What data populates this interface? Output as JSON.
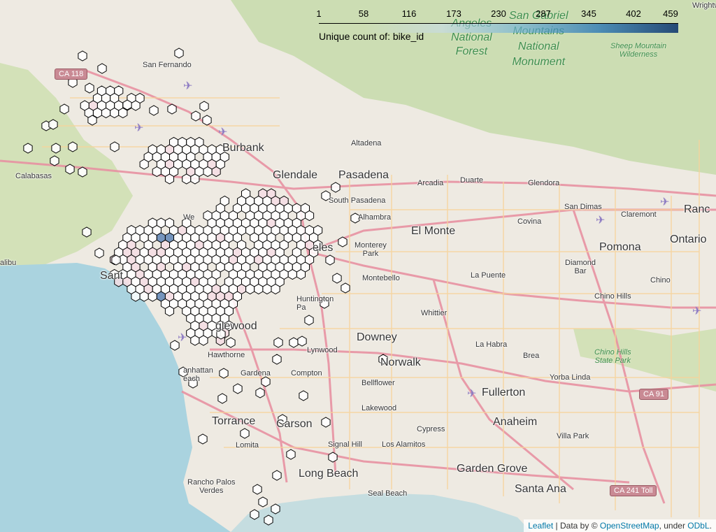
{
  "map": {
    "legend": {
      "ticks": [
        "1",
        "58",
        "116",
        "173",
        "230",
        "287",
        "345",
        "402",
        "459"
      ],
      "title": "Unique count of: bike_id"
    },
    "labels": {
      "san_fernando": "San Fernando",
      "burbank": "Burbank",
      "calabasas": "Calabasas",
      "glendale": "Glendale",
      "pasadena": "Pasadena",
      "altadena": "Altadena",
      "arcadia": "Arcadia",
      "duarte": "Duarte",
      "glendora": "Glendora",
      "san_dimas": "San Dimas",
      "claremont": "Claremont",
      "ranc": "Ranc",
      "south_pasadena": "South Pasadena",
      "alhambra": "Alhambra",
      "el_monte": "El Monte",
      "covina": "Covina",
      "pomona": "Pomona",
      "ontario": "Ontario",
      "monterey_park": "Monterey\nPark",
      "diamond_bar": "Diamond\nBar",
      "chino": "Chino",
      "montebello": "Montebello",
      "la_puente": "La Puente",
      "chino_hills": "Chino Hills",
      "malibu": "alibu",
      "santa_monica": "Sant",
      "huntington_park": "Huntington\nPa",
      "whittier": "Whittier",
      "inglewood": "glewood",
      "downey": "Downey",
      "la_habra": "La Habra",
      "brea": "Brea",
      "lynwood": "Lynwood",
      "hawthorne": "Hawthorne",
      "norwalk": "Norwalk",
      "gardena": "Gardena",
      "compton": "Compton",
      "bellflower": "Bellflower",
      "fullerton": "Fullerton",
      "yorba_linda": "Yorba Linda",
      "manhattan_beach": "anhattan\neach",
      "lakewood": "Lakewood",
      "torrance": "Torrance",
      "carson": "Carson",
      "anaheim": "Anaheim",
      "cypress": "Cypress",
      "lomita": "Lomita",
      "signal_hill": "Signal Hill",
      "los_alamitos": "Los Alamitos",
      "villa_park": "Villa Park",
      "long_beach": "Long Beach",
      "garden_grove": "Garden Grove",
      "rancho_palos_verdes": "Rancho Palos\nVerdes",
      "seal_beach": "Seal Beach",
      "santa_ana": "Santa Ana",
      "los_angeles_partial": "eles",
      "angeles_forest": "Angeles\nNational\nForest",
      "san_gabriel_monument": "San Gabriel\nMountains\nNational\nMonument",
      "sheep_mountain": "Sheep Mountain\nWilderness",
      "chino_hills_park": "Chino Hills\nState Park",
      "wrightwood": "Wrightwo",
      "we": "We"
    },
    "shields": {
      "ca118": "CA 118",
      "ca91": "CA 91",
      "ca241": "CA 241 Toll"
    },
    "attribution": {
      "leaflet": "Leaflet",
      "sep1": " | Data by © ",
      "osm": "OpenStreetMap",
      "sep2": ", under ",
      "odbl": "ODbL",
      "end": "."
    },
    "colors": {
      "ocean": "#aad3df",
      "land": "#eeeae2",
      "park": "#c8dcae",
      "freeway": "#e892a2",
      "road": "#f7d39a",
      "hex_fill": "#ffffff",
      "hex_stroke": "#000000",
      "hex_pink": "#f4dde4",
      "hex_blue": "#5f85b5"
    }
  }
}
